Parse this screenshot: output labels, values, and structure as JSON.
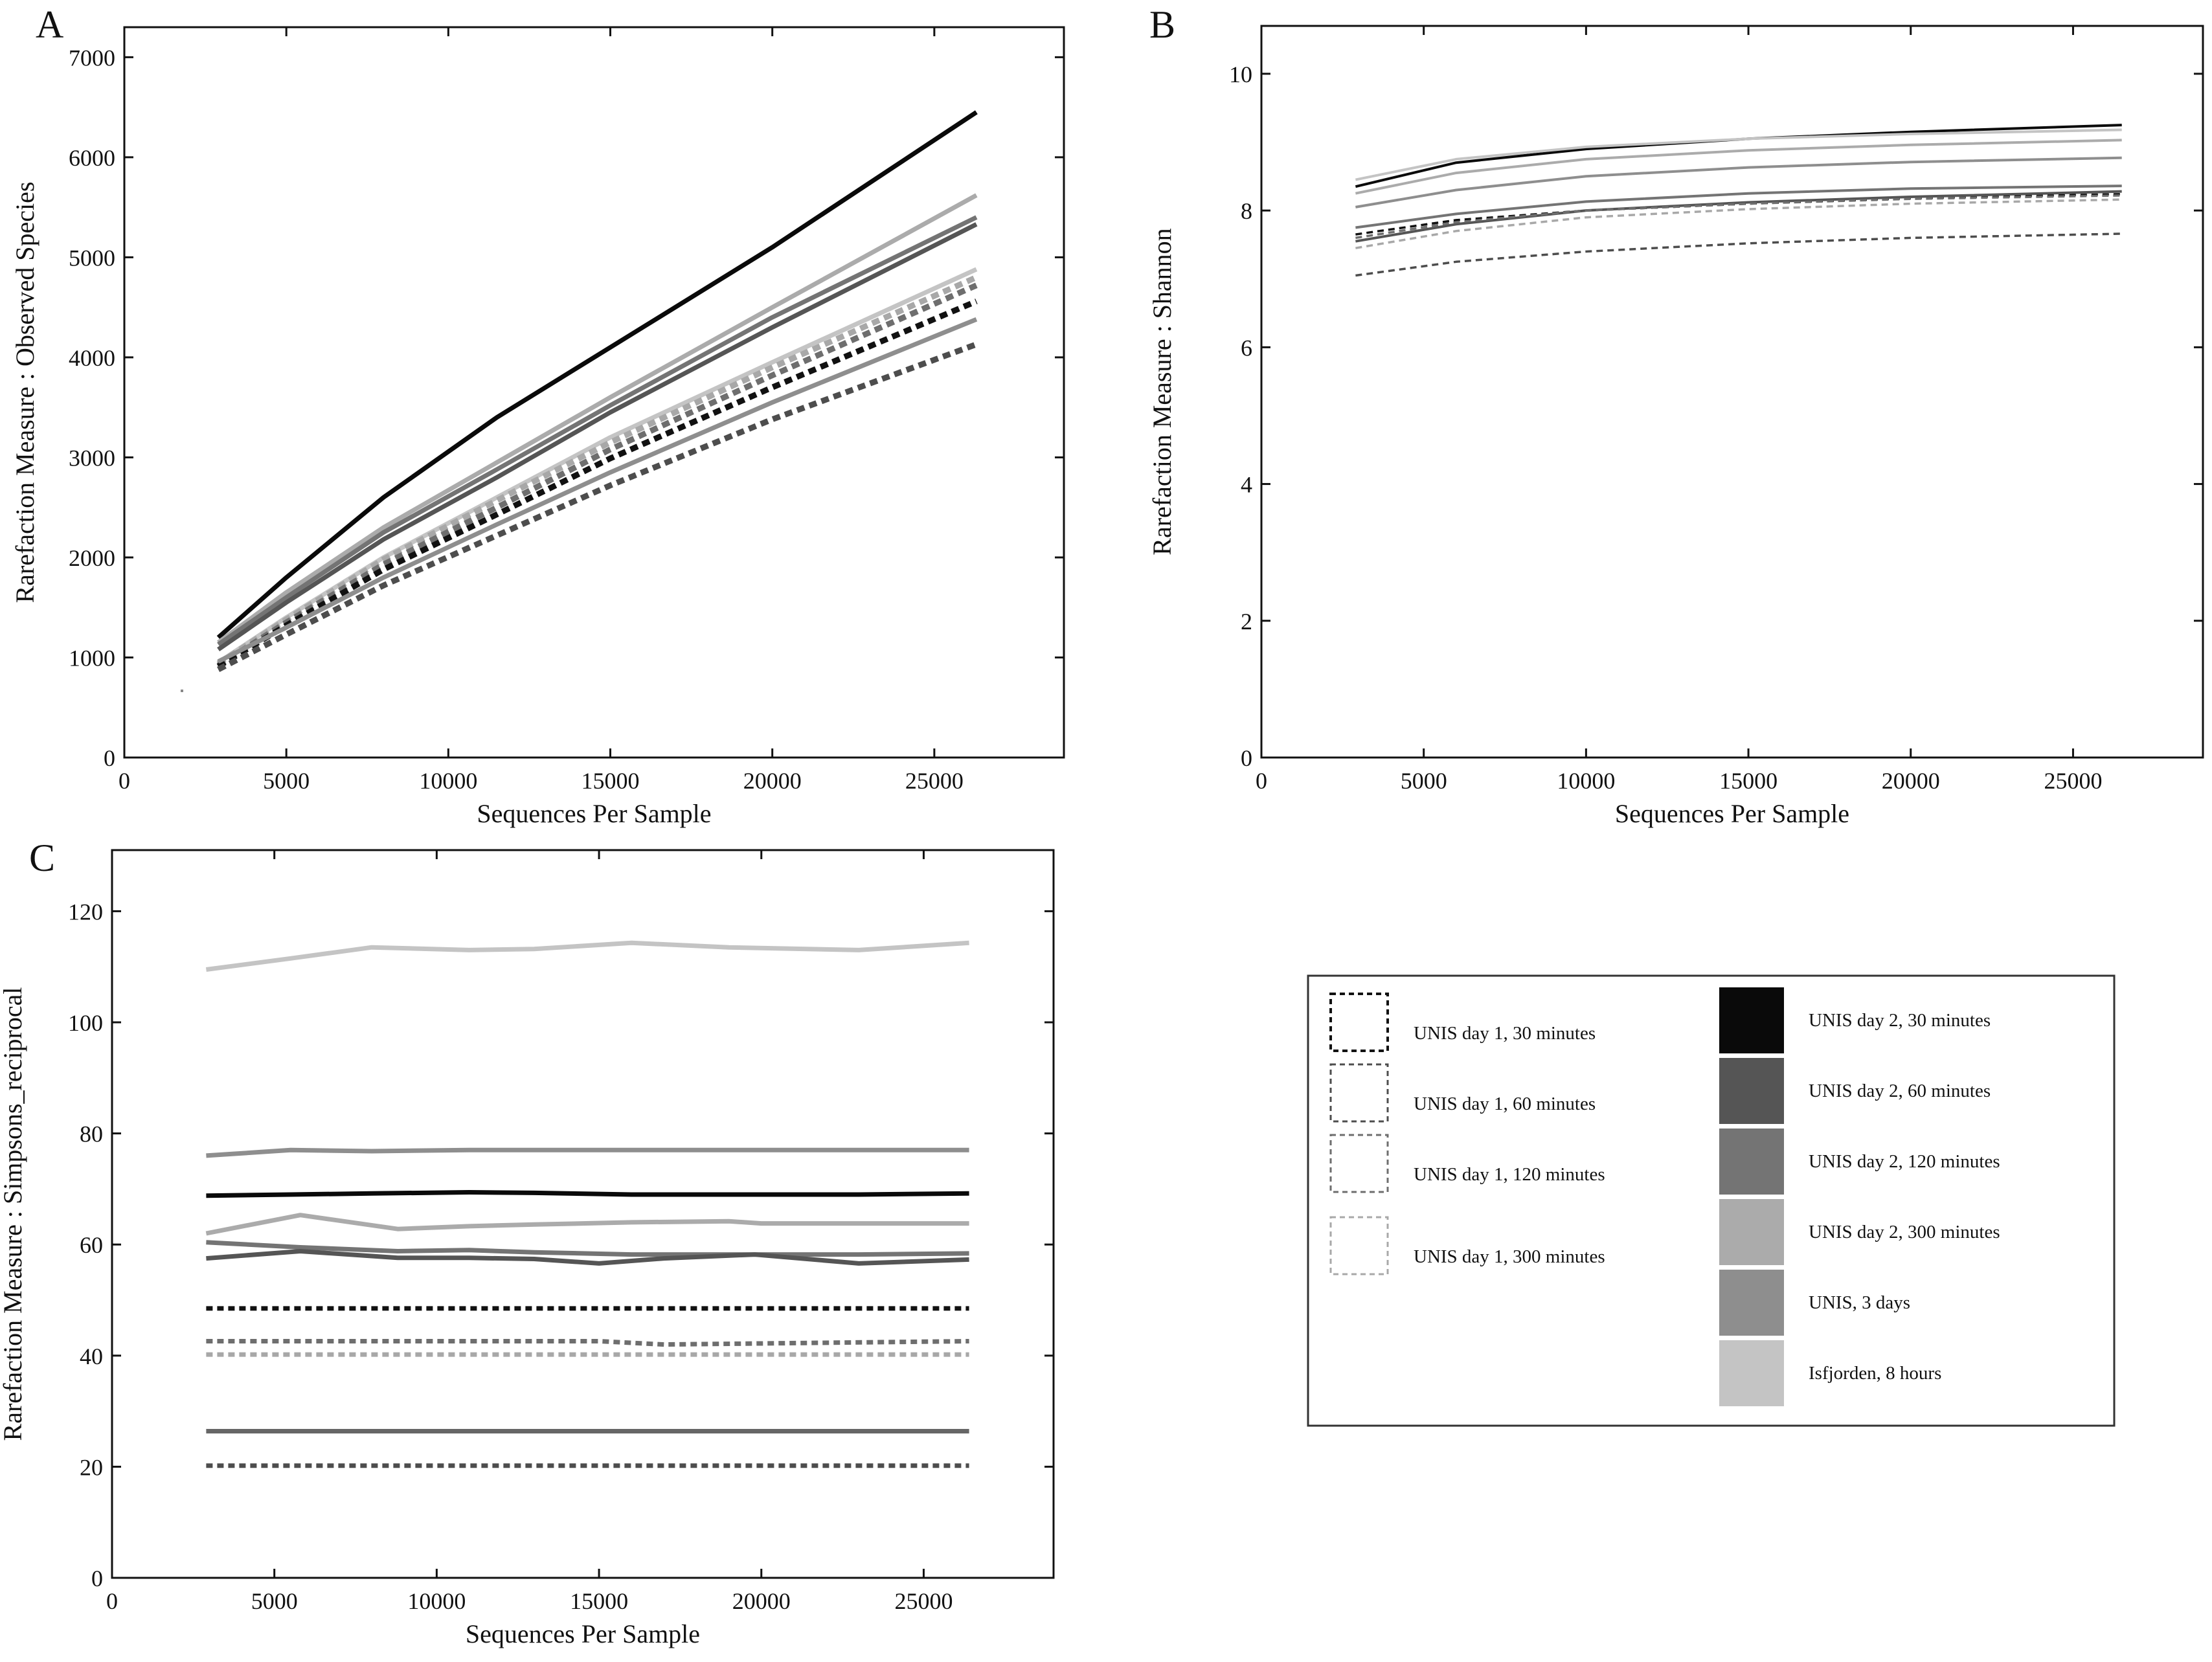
{
  "figure": {
    "legend": {
      "items": [
        {
          "key": "d1_30",
          "label": "UNIS day 1, 30 minutes",
          "color": "#111111",
          "style": "dashed"
        },
        {
          "key": "d1_60",
          "label": "UNIS day 1, 60 minutes",
          "color": "#4d4d4d",
          "style": "dashed"
        },
        {
          "key": "d1_120",
          "label": "UNIS day 1, 120 minutes",
          "color": "#6e6e6e",
          "style": "dashed"
        },
        {
          "key": "d1_300",
          "label": "UNIS day 1, 300 minutes",
          "color": "#a8a8a8",
          "style": "dashed"
        },
        {
          "key": "d2_30",
          "label": "UNIS day 2, 30 minutes",
          "color": "#0a0a0a",
          "style": "solid"
        },
        {
          "key": "d2_60",
          "label": "UNIS day 2, 60 minutes",
          "color": "#555555",
          "style": "solid"
        },
        {
          "key": "d2_120",
          "label": "UNIS day 2, 120 minutes",
          "color": "#747474",
          "style": "solid"
        },
        {
          "key": "d2_300",
          "label": "UNIS day 2, 300 minutes",
          "color": "#ababab",
          "style": "solid"
        },
        {
          "key": "d3",
          "label": "UNIS, 3 days",
          "color": "#8e8e8e",
          "style": "solid"
        },
        {
          "key": "isf",
          "label": "Isfjorden, 8 hours",
          "color": "#c4c4c4",
          "style": "solid"
        }
      ]
    }
  },
  "chart_data": [
    {
      "panel": "A",
      "type": "line",
      "title": "",
      "xlabel": "Sequences Per Sample",
      "ylabel": "Rarefaction Measure : Observed Species",
      "xlim": [
        0,
        29000
      ],
      "ylim": [
        0,
        7300
      ],
      "xticks": [
        0,
        5000,
        10000,
        15000,
        20000,
        25000
      ],
      "yticks": [
        0,
        1000,
        2000,
        3000,
        4000,
        5000,
        6000,
        7000
      ],
      "grid": false,
      "series": [
        {
          "key": "d2_30",
          "x": [
            2900,
            5000,
            8000,
            11500,
            15000,
            20000,
            26300
          ],
          "y": [
            1200,
            1800,
            2600,
            3400,
            4100,
            5100,
            6450
          ]
        },
        {
          "key": "d2_300",
          "x": [
            2900,
            5000,
            8000,
            11500,
            15000,
            20000,
            26300
          ],
          "y": [
            1150,
            1650,
            2300,
            2950,
            3600,
            4500,
            5620
          ]
        },
        {
          "key": "d2_120",
          "x": [
            2900,
            5000,
            8000,
            11500,
            15000,
            20000,
            26300
          ],
          "y": [
            1130,
            1600,
            2250,
            2880,
            3520,
            4400,
            5400
          ]
        },
        {
          "key": "d2_60",
          "x": [
            2900,
            5000,
            8000,
            11500,
            15000,
            20000,
            26300
          ],
          "y": [
            1080,
            1550,
            2180,
            2800,
            3450,
            4300,
            5330
          ]
        },
        {
          "key": "isf",
          "x": [
            2900,
            5000,
            8000,
            11500,
            15000,
            20000,
            26300
          ],
          "y": [
            950,
            1400,
            2000,
            2600,
            3200,
            3950,
            4880
          ]
        },
        {
          "key": "d1_300",
          "x": [
            2900,
            5000,
            8000,
            11500,
            15000,
            20000,
            26300
          ],
          "y": [
            940,
            1380,
            1980,
            2570,
            3150,
            3900,
            4800
          ]
        },
        {
          "key": "d1_120",
          "x": [
            2900,
            5000,
            8000,
            11500,
            15000,
            20000,
            26300
          ],
          "y": [
            920,
            1350,
            1930,
            2500,
            3080,
            3820,
            4720
          ]
        },
        {
          "key": "d1_30",
          "x": [
            2900,
            5000,
            8000,
            11500,
            15000,
            20000,
            26300
          ],
          "y": [
            910,
            1320,
            1880,
            2430,
            2990,
            3700,
            4560
          ]
        },
        {
          "key": "d3",
          "x": [
            2900,
            5000,
            8000,
            11500,
            15000,
            20000,
            26300
          ],
          "y": [
            960,
            1300,
            1800,
            2330,
            2850,
            3550,
            4380
          ]
        },
        {
          "key": "d1_60",
          "x": [
            2900,
            5000,
            8000,
            11500,
            15000,
            20000,
            26300
          ],
          "y": [
            880,
            1230,
            1720,
            2220,
            2720,
            3380,
            4130
          ]
        }
      ]
    },
    {
      "panel": "B",
      "type": "line",
      "title": "",
      "xlabel": "Sequences Per Sample",
      "ylabel": "Rarefaction Measure : Shannon",
      "xlim": [
        0,
        29000
      ],
      "ylim": [
        0,
        10.7
      ],
      "xticks": [
        0,
        5000,
        10000,
        15000,
        20000,
        25000
      ],
      "yticks": [
        0,
        2,
        4,
        6,
        8,
        10
      ],
      "grid": false,
      "series": [
        {
          "key": "d2_30",
          "x": [
            2900,
            6000,
            10000,
            15000,
            20000,
            26500
          ],
          "y": [
            8.35,
            8.7,
            8.9,
            9.05,
            9.15,
            9.25
          ]
        },
        {
          "key": "isf",
          "x": [
            2900,
            6000,
            10000,
            15000,
            20000,
            26500
          ],
          "y": [
            8.45,
            8.75,
            8.93,
            9.05,
            9.12,
            9.18
          ]
        },
        {
          "key": "d2_300",
          "x": [
            2900,
            6000,
            10000,
            15000,
            20000,
            26500
          ],
          "y": [
            8.25,
            8.55,
            8.75,
            8.88,
            8.96,
            9.03
          ]
        },
        {
          "key": "d3",
          "x": [
            2900,
            6000,
            10000,
            15000,
            20000,
            26500
          ],
          "y": [
            8.05,
            8.3,
            8.5,
            8.63,
            8.71,
            8.77
          ]
        },
        {
          "key": "d2_120",
          "x": [
            2900,
            6000,
            10000,
            15000,
            20000,
            26500
          ],
          "y": [
            7.75,
            7.95,
            8.13,
            8.25,
            8.32,
            8.36
          ]
        },
        {
          "key": "d1_30",
          "x": [
            2900,
            6000,
            10000,
            15000,
            20000,
            26500
          ],
          "y": [
            7.65,
            7.86,
            8.0,
            8.1,
            8.18,
            8.24
          ]
        },
        {
          "key": "d2_60",
          "x": [
            2900,
            6000,
            10000,
            15000,
            20000,
            26500
          ],
          "y": [
            7.55,
            7.8,
            8.0,
            8.12,
            8.2,
            8.28
          ]
        },
        {
          "key": "d1_120",
          "x": [
            2900,
            6000,
            10000,
            15000,
            20000,
            26500
          ],
          "y": [
            7.6,
            7.83,
            8.0,
            8.1,
            8.17,
            8.22
          ]
        },
        {
          "key": "d1_300",
          "x": [
            2900,
            6000,
            10000,
            15000,
            20000,
            26500
          ],
          "y": [
            7.45,
            7.7,
            7.9,
            8.02,
            8.1,
            8.16
          ]
        },
        {
          "key": "d1_60",
          "x": [
            2900,
            6000,
            10000,
            15000,
            20000,
            26500
          ],
          "y": [
            7.05,
            7.25,
            7.4,
            7.52,
            7.6,
            7.66
          ]
        }
      ]
    },
    {
      "panel": "C",
      "type": "line",
      "title": "",
      "xlabel": "Sequences Per Sample",
      "ylabel": "Rarefaction Measure : Simpsons_reciprocal",
      "xlim": [
        0,
        29000
      ],
      "ylim": [
        0,
        131
      ],
      "xticks": [
        0,
        5000,
        10000,
        15000,
        20000,
        25000
      ],
      "yticks": [
        0,
        20,
        40,
        60,
        80,
        100,
        120
      ],
      "grid": false,
      "series": [
        {
          "key": "isf",
          "x": [
            2900,
            5500,
            8000,
            11000,
            13000,
            16000,
            19000,
            23000,
            26400
          ],
          "y": [
            109.5,
            111.5,
            113.5,
            113,
            113.2,
            114.3,
            113.5,
            113,
            114.3
          ]
        },
        {
          "key": "d3",
          "x": [
            2900,
            5500,
            8000,
            11000,
            13000,
            16000,
            19000,
            23000,
            26400
          ],
          "y": [
            76,
            77,
            76.8,
            77,
            77,
            77,
            77,
            77,
            77
          ]
        },
        {
          "key": "d2_30",
          "x": [
            2900,
            5500,
            8000,
            11000,
            13000,
            16000,
            19000,
            23000,
            26400
          ],
          "y": [
            68.8,
            69,
            69.2,
            69.4,
            69.3,
            69,
            69,
            69,
            69.2
          ]
        },
        {
          "key": "d2_300",
          "x": [
            2900,
            5800,
            8800,
            11000,
            13000,
            16000,
            19000,
            20000,
            26400
          ],
          "y": [
            62,
            65.3,
            62.8,
            63.3,
            63.6,
            64,
            64.2,
            63.8,
            63.8
          ]
        },
        {
          "key": "d2_120",
          "x": [
            2900,
            5800,
            8800,
            11000,
            13000,
            16000,
            19000,
            23000,
            26400
          ],
          "y": [
            60.4,
            59.5,
            58.8,
            59,
            58.6,
            58.2,
            58.2,
            58.2,
            58.4
          ]
        },
        {
          "key": "d2_60",
          "x": [
            2900,
            5800,
            8800,
            11000,
            13000,
            15000,
            17000,
            19800,
            23000,
            26400
          ],
          "y": [
            57.5,
            58.8,
            57.6,
            57.6,
            57.4,
            56.6,
            57.5,
            58.2,
            56.6,
            57.3
          ]
        },
        {
          "key": "d1_30",
          "x": [
            2900,
            26400
          ],
          "y": [
            48.5,
            48.5
          ]
        },
        {
          "key": "d1_120",
          "x": [
            2900,
            15000,
            17000,
            26400
          ],
          "y": [
            42.6,
            42.6,
            42,
            42.6
          ]
        },
        {
          "key": "d1_300",
          "x": [
            2900,
            26400
          ],
          "y": [
            40.2,
            40.2
          ]
        },
        {
          "key": "d3_low",
          "color": "#666666",
          "style": "solid",
          "x": [
            2900,
            26400
          ],
          "y": [
            26.4,
            26.4
          ]
        },
        {
          "key": "d1_60",
          "x": [
            2900,
            26400
          ],
          "y": [
            20.2,
            20.2
          ]
        }
      ]
    }
  ]
}
